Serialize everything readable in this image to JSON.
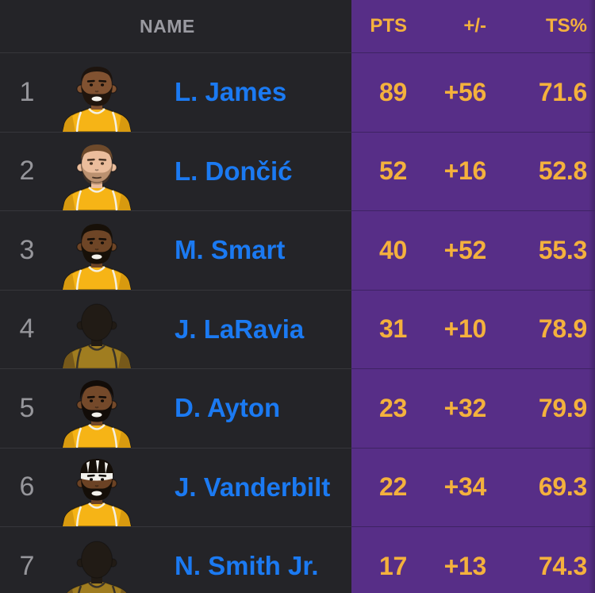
{
  "colors": {
    "background_dark": "#242428",
    "panel_purple": "#572E87",
    "separator_dark": "#36363B",
    "separator_purple": "#3E2363",
    "stat_gold": "#F4B13D",
    "name_blue": "#1B7AF2",
    "rank_gray": "#96969B",
    "header_gray": "#9A9AA1"
  },
  "header": {
    "name_label": "NAME",
    "pts_label": "PTS",
    "plusminus_label": "+/-",
    "ts_label": "TS%"
  },
  "chart_data": {
    "type": "table",
    "title": "",
    "columns": [
      "NAME",
      "PTS",
      "+/-",
      "TS%"
    ],
    "rows_values": [
      [
        "L. James",
        89,
        56,
        71.6
      ],
      [
        "L. Dončić",
        52,
        16,
        52.8
      ],
      [
        "M. Smart",
        40,
        52,
        55.3
      ],
      [
        "J. LaRavia",
        31,
        10,
        78.9
      ],
      [
        "D. Ayton",
        23,
        32,
        79.9
      ],
      [
        "J. Vanderbilt",
        22,
        34,
        69.3
      ],
      [
        "N. Smith Jr.",
        17,
        13,
        74.3
      ]
    ]
  },
  "table": {
    "rows": [
      {
        "rank": "1",
        "name": "L. James",
        "pts": "89",
        "pm": "+56",
        "ts": "71.6",
        "avatar": {
          "icon": "player-portrait-icon",
          "type": "face",
          "skin": "#815231",
          "hair_style": "short",
          "hair": "#1D140E",
          "beard": true,
          "beard_color": "#20150D",
          "smile": true,
          "feature": "#160F0A"
        }
      },
      {
        "rank": "2",
        "name": "L. Dončić",
        "pts": "52",
        "pm": "+16",
        "ts": "52.8",
        "avatar": {
          "icon": "player-portrait-icon",
          "type": "face",
          "skin": "#EBBD9C",
          "hair_style": "fuller",
          "hair": "#6E4A2B",
          "beard": false,
          "stubble": true,
          "stubble_color": "rgba(110,74,43,0.38)",
          "smile": false,
          "feature": "#4A3526"
        }
      },
      {
        "rank": "3",
        "name": "M. Smart",
        "pts": "40",
        "pm": "+52",
        "ts": "55.3",
        "avatar": {
          "icon": "player-portrait-icon",
          "type": "face",
          "skin": "#6E4526",
          "hair_style": "fuller",
          "hair": "#171008",
          "beard": true,
          "beard_color": "#171008",
          "smile": true,
          "feature": "#120C07"
        }
      },
      {
        "rank": "4",
        "name": "J. LaRavia",
        "pts": "31",
        "pm": "+10",
        "ts": "78.9",
        "avatar": {
          "icon": "player-silhouette-icon",
          "type": "silhouette",
          "body": "#211B15",
          "jersey": "#A07D20",
          "jersey_shade": "#77591A",
          "trim": "#39332A"
        }
      },
      {
        "rank": "5",
        "name": "D. Ayton",
        "pts": "23",
        "pm": "+32",
        "ts": "79.9",
        "avatar": {
          "icon": "player-portrait-icon",
          "type": "face",
          "skin": "#74492A",
          "hair_style": "curly",
          "hair": "#120C08",
          "beard": true,
          "beard_color": "#120C08",
          "smile": true,
          "feature": "#0F0A06"
        }
      },
      {
        "rank": "6",
        "name": "J. Vanderbilt",
        "pts": "22",
        "pm": "+34",
        "ts": "69.3",
        "avatar": {
          "icon": "player-portrait-icon",
          "type": "face",
          "skin": "#6B4224",
          "hair_style": "headband",
          "hair": "#140E08",
          "headband_color": "#F2F1EC",
          "beard": true,
          "beard_color": "#140E08",
          "smile": true,
          "feature": "#100B06"
        }
      },
      {
        "rank": "7",
        "name": "N. Smith Jr.",
        "pts": "17",
        "pm": "+13",
        "ts": "74.3",
        "avatar": {
          "icon": "player-silhouette-icon",
          "type": "silhouette",
          "body": "#211B15",
          "jersey": "#A07D20",
          "jersey_shade": "#77591A",
          "trim": "#39332A"
        }
      }
    ],
    "jersey": {
      "gold": "#F6B416",
      "shade": "#D89A0F",
      "trim": "#F3EFE2"
    }
  }
}
